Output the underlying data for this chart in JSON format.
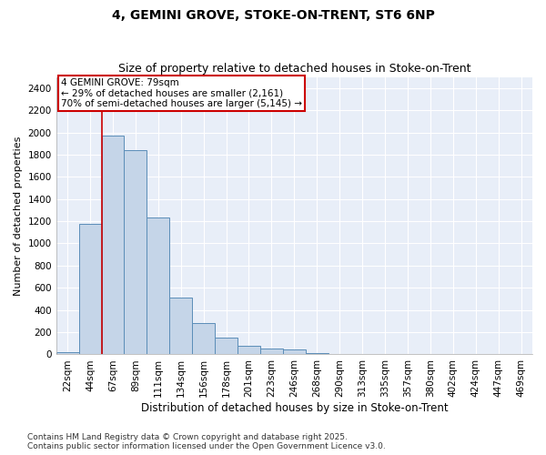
{
  "title": "4, GEMINI GROVE, STOKE-ON-TRENT, ST6 6NP",
  "subtitle": "Size of property relative to detached houses in Stoke-on-Trent",
  "xlabel": "Distribution of detached houses by size in Stoke-on-Trent",
  "ylabel": "Number of detached properties",
  "categories": [
    "22sqm",
    "44sqm",
    "67sqm",
    "89sqm",
    "111sqm",
    "134sqm",
    "156sqm",
    "178sqm",
    "201sqm",
    "223sqm",
    "246sqm",
    "268sqm",
    "290sqm",
    "313sqm",
    "335sqm",
    "357sqm",
    "380sqm",
    "402sqm",
    "424sqm",
    "447sqm",
    "469sqm"
  ],
  "values": [
    20,
    1175,
    1970,
    1840,
    1230,
    510,
    280,
    155,
    80,
    50,
    45,
    10,
    5,
    3,
    2,
    2,
    1,
    1,
    1,
    1,
    1
  ],
  "bar_color": "#c5d5e8",
  "bar_edge_color": "#5b8db8",
  "background_color": "#e8eef8",
  "vline_color": "#cc0000",
  "annotation_text": "4 GEMINI GROVE: 79sqm\n← 29% of detached houses are smaller (2,161)\n70% of semi-detached houses are larger (5,145) →",
  "annotation_box_color": "#cc0000",
  "ylim": [
    0,
    2500
  ],
  "yticks": [
    0,
    200,
    400,
    600,
    800,
    1000,
    1200,
    1400,
    1600,
    1800,
    2000,
    2200,
    2400
  ],
  "footer_line1": "Contains HM Land Registry data © Crown copyright and database right 2025.",
  "footer_line2": "Contains public sector information licensed under the Open Government Licence v3.0.",
  "title_fontsize": 10,
  "subtitle_fontsize": 9,
  "xlabel_fontsize": 8.5,
  "ylabel_fontsize": 8,
  "tick_fontsize": 7.5,
  "annotation_fontsize": 7.5,
  "footer_fontsize": 6.5,
  "vline_pos": 1.5
}
